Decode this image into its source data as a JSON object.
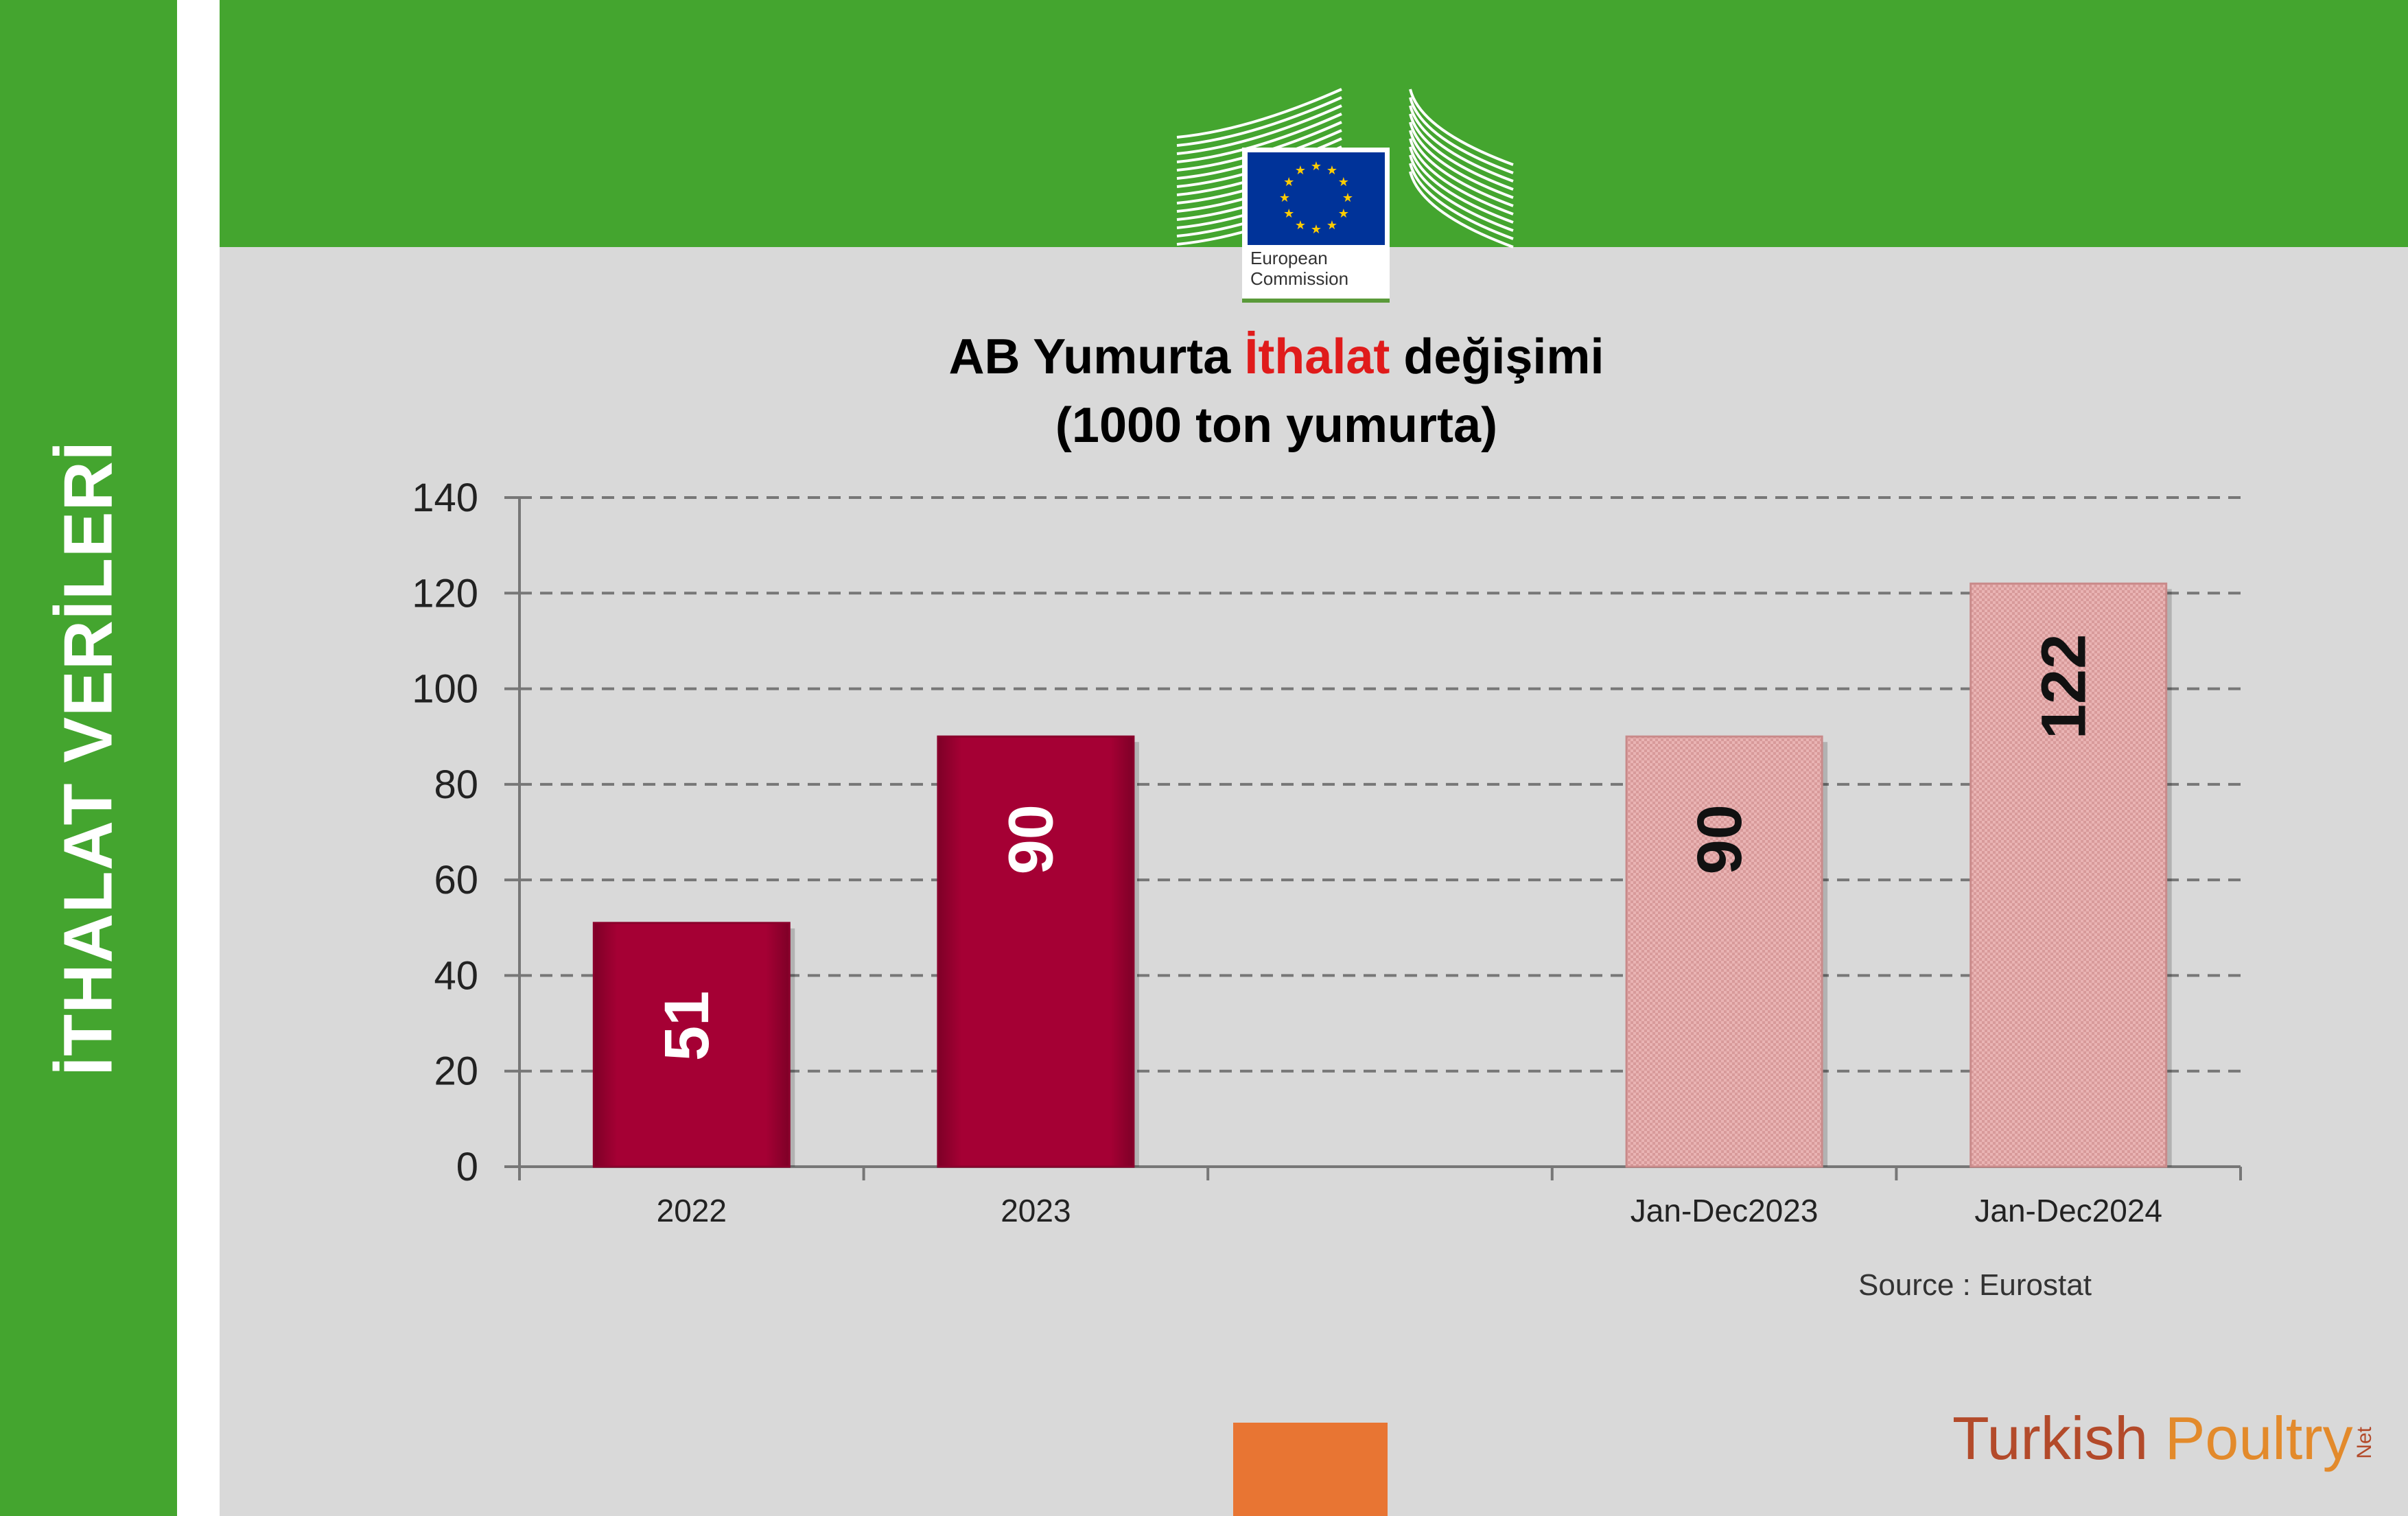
{
  "side_title": "İTHALAT VERİLERİ",
  "logo": {
    "line1": "European",
    "line2": "Commission",
    "flag_color": "#003399",
    "star_color": "#ffcc00"
  },
  "chart_title": {
    "line1_pre": "AB Yumurta ",
    "line1_accent": "İthalat",
    "line1_post": " değişimi",
    "line2": "(1000 ton yumurta)"
  },
  "source": "Source : Eurostat",
  "brand": {
    "word1": "Turkish ",
    "word2": "Poultry",
    "suffix": "Net"
  },
  "colors": {
    "green": "#44a52f",
    "bar_dark": "#a50034",
    "bar_light": "#e9b4b4",
    "accent_red": "#e01b1b",
    "orange": "#e87533"
  },
  "chart_data": {
    "type": "bar",
    "categories": [
      "2022",
      "2023",
      "",
      "Jan-Dec2023",
      "Jan-Dec2024"
    ],
    "values": [
      51,
      90,
      null,
      90,
      122
    ],
    "data_labels": [
      "51",
      "90",
      "",
      "90",
      "122"
    ],
    "bar_styles": [
      "dark",
      "dark",
      "none",
      "light",
      "light"
    ],
    "ylim": [
      0,
      140
    ],
    "yticks": [
      0,
      20,
      40,
      60,
      80,
      100,
      120,
      140
    ],
    "grid": true
  }
}
